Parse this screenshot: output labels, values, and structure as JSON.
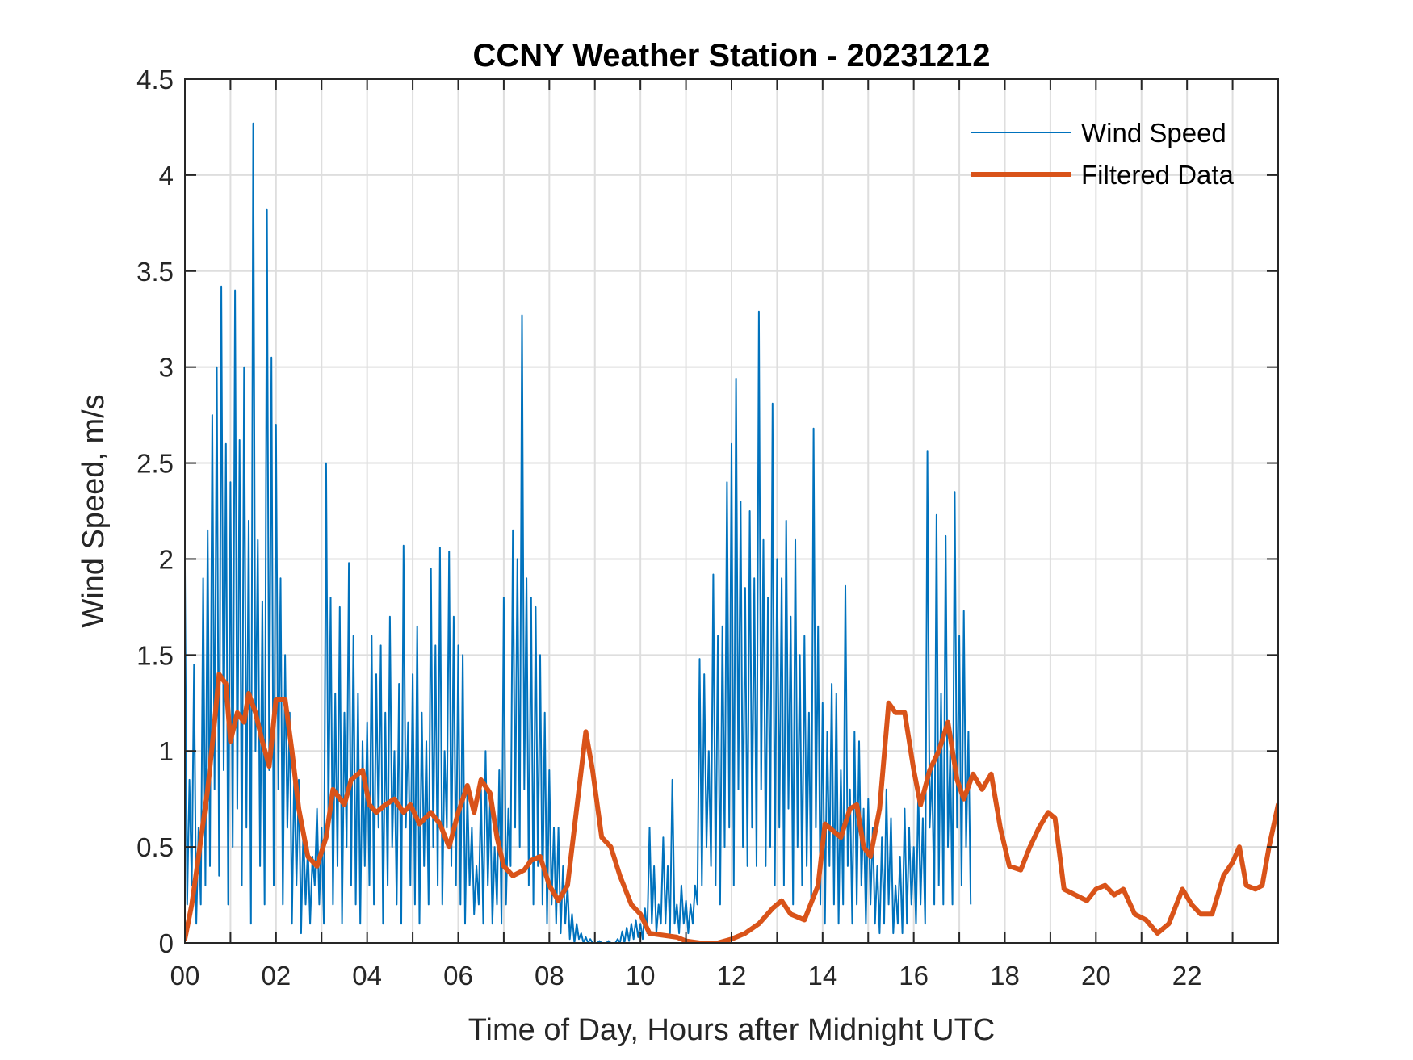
{
  "chart_data": {
    "type": "line",
    "title": "CCNY Weather Station - 20231212",
    "xlabel": "Time of Day, Hours after Midnight UTC",
    "ylabel": "Wind Speed, m/s",
    "xlim": [
      0,
      24
    ],
    "ylim": [
      0,
      4.5
    ],
    "grid": true,
    "legend_position": "top-right",
    "x_ticks": [
      0,
      2,
      4,
      6,
      8,
      10,
      12,
      14,
      16,
      18,
      20,
      22
    ],
    "x_tick_labels": [
      "00",
      "02",
      "04",
      "06",
      "08",
      "10",
      "12",
      "14",
      "16",
      "18",
      "20",
      "22"
    ],
    "x_minor_ticks_every_hours": 1,
    "y_ticks": [
      0,
      0.5,
      1,
      1.5,
      2,
      2.5,
      3,
      3.5,
      4,
      4.5
    ],
    "y_tick_labels": [
      "0",
      "0.5",
      "1",
      "1.5",
      "2",
      "2.5",
      "3",
      "3.5",
      "4",
      "4.5"
    ],
    "series": [
      {
        "name": "Wind Speed",
        "color": "#0072BD",
        "style": "thin",
        "x_step_hours": 0.05,
        "x_start": 0,
        "values": [
          1.95,
          0.2,
          0.85,
          0.3,
          1.45,
          0.1,
          0.6,
          0.2,
          1.9,
          0.3,
          2.15,
          0.4,
          2.75,
          0.8,
          3.0,
          0.35,
          3.42,
          0.9,
          2.6,
          0.2,
          2.4,
          0.5,
          3.4,
          0.7,
          2.62,
          0.3,
          3.0,
          0.6,
          2.2,
          0.1,
          4.27,
          1.0,
          2.1,
          0.4,
          1.78,
          0.2,
          3.82,
          0.9,
          3.05,
          0.3,
          2.7,
          0.8,
          1.9,
          0.2,
          1.5,
          0.6,
          1.2,
          0.1,
          0.9,
          0.3,
          0.85,
          0.05,
          0.6,
          0.2,
          0.5,
          0.1,
          0.45,
          0.3,
          0.7,
          0.2,
          0.6,
          0.1,
          2.5,
          0.6,
          1.8,
          0.2,
          1.3,
          0.4,
          1.75,
          0.1,
          1.2,
          0.5,
          1.98,
          0.3,
          1.6,
          0.2,
          1.3,
          0.1,
          1.05,
          0.4,
          1.15,
          0.3,
          1.6,
          0.2,
          1.4,
          0.6,
          1.55,
          0.1,
          1.2,
          0.3,
          1.7,
          0.5,
          1.0,
          0.2,
          1.35,
          0.1,
          2.07,
          0.6,
          1.15,
          0.3,
          1.4,
          0.2,
          1.65,
          0.1,
          1.2,
          0.4,
          1.05,
          0.2,
          1.95,
          0.5,
          1.55,
          0.3,
          2.06,
          0.2,
          1.0,
          0.6,
          2.04,
          0.4,
          1.7,
          0.3,
          1.55,
          0.2,
          1.5,
          0.1,
          0.8,
          0.3,
          0.6,
          0.15,
          0.4,
          0.2,
          0.8,
          0.1,
          1.0,
          0.3,
          0.75,
          0.1,
          0.5,
          0.2,
          0.9,
          0.1,
          1.8,
          0.2,
          0.7,
          0.4,
          2.15,
          0.6,
          2.0,
          0.5,
          3.27,
          0.8,
          1.9,
          0.3,
          1.8,
          0.2,
          1.75,
          0.4,
          1.5,
          0.2,
          1.2,
          0.1,
          0.9,
          0.2,
          0.6,
          0.1,
          0.6,
          0.05,
          0.4,
          0.1,
          0.3,
          0.02,
          0.15,
          0.0,
          0.1,
          0.02,
          0.05,
          0.0,
          0.03,
          0.0,
          0.02,
          0.0,
          0.0,
          0.0,
          0.01,
          0.0,
          0.0,
          0.0,
          0.01,
          0.0,
          0.0,
          0.0,
          0.02,
          0.0,
          0.06,
          0.0,
          0.08,
          0.01,
          0.1,
          0.02,
          0.12,
          0.03,
          0.1,
          0.02,
          0.18,
          0.05,
          0.6,
          0.1,
          0.4,
          0.05,
          0.2,
          0.1,
          0.55,
          0.1,
          0.4,
          0.05,
          0.85,
          0.1,
          0.2,
          0.05,
          0.3,
          0.1,
          0.22,
          0.05,
          0.2,
          0.1,
          0.3,
          0.2,
          1.48,
          0.3,
          1.4,
          0.5,
          1.0,
          0.4,
          1.92,
          0.3,
          1.6,
          0.2,
          1.65,
          0.5,
          2.4,
          0.6,
          2.6,
          0.3,
          2.94,
          0.8,
          2.3,
          0.5,
          1.85,
          0.4,
          2.25,
          0.6,
          1.9,
          0.4,
          3.29,
          0.8,
          2.1,
          0.4,
          1.8,
          0.5,
          2.81,
          0.3,
          2.0,
          0.6,
          1.9,
          0.3,
          2.2,
          0.7,
          1.7,
          0.2,
          2.1,
          0.5,
          1.5,
          0.3,
          1.6,
          0.4,
          1.2,
          0.2,
          2.68,
          0.6,
          1.65,
          0.2,
          1.25,
          0.1,
          1.1,
          0.4,
          1.35,
          0.2,
          1.3,
          0.1,
          0.9,
          0.2,
          1.86,
          0.4,
          0.8,
          0.1,
          1.1,
          0.2,
          1.05,
          0.3,
          0.7,
          0.1,
          0.75,
          0.2,
          0.6,
          0.1,
          0.4,
          0.05,
          0.55,
          0.1,
          0.8,
          0.2,
          0.65,
          0.05,
          0.3,
          0.1,
          0.45,
          0.05,
          0.7,
          0.1,
          0.6,
          0.2,
          0.5,
          0.1,
          0.8,
          0.2,
          0.65,
          0.1,
          2.56,
          0.6,
          0.9,
          0.2,
          2.23,
          0.3,
          1.3,
          0.2,
          2.12,
          0.5,
          1.0,
          0.2,
          2.35,
          0.6,
          1.6,
          0.3,
          1.73,
          0.5,
          1.1,
          0.2
        ]
      },
      {
        "name": "Filtered Data",
        "color": "#D95319",
        "style": "thick",
        "points": [
          [
            0,
            0.02
          ],
          [
            0.15,
            0.2
          ],
          [
            0.3,
            0.45
          ],
          [
            0.5,
            0.8
          ],
          [
            0.65,
            1.15
          ],
          [
            0.75,
            1.4
          ],
          [
            0.9,
            1.35
          ],
          [
            1.0,
            1.05
          ],
          [
            1.15,
            1.2
          ],
          [
            1.3,
            1.15
          ],
          [
            1.4,
            1.3
          ],
          [
            1.55,
            1.2
          ],
          [
            1.7,
            1.05
          ],
          [
            1.85,
            0.92
          ],
          [
            2.0,
            1.27
          ],
          [
            2.2,
            1.27
          ],
          [
            2.35,
            1.0
          ],
          [
            2.5,
            0.7
          ],
          [
            2.7,
            0.45
          ],
          [
            2.9,
            0.4
          ],
          [
            3.1,
            0.55
          ],
          [
            3.25,
            0.8
          ],
          [
            3.5,
            0.72
          ],
          [
            3.65,
            0.85
          ],
          [
            3.9,
            0.9
          ],
          [
            4.05,
            0.72
          ],
          [
            4.2,
            0.68
          ],
          [
            4.4,
            0.72
          ],
          [
            4.6,
            0.75
          ],
          [
            4.8,
            0.68
          ],
          [
            4.95,
            0.72
          ],
          [
            5.15,
            0.62
          ],
          [
            5.4,
            0.68
          ],
          [
            5.6,
            0.62
          ],
          [
            5.8,
            0.5
          ],
          [
            6.0,
            0.68
          ],
          [
            6.2,
            0.82
          ],
          [
            6.35,
            0.68
          ],
          [
            6.5,
            0.85
          ],
          [
            6.7,
            0.78
          ],
          [
            6.85,
            0.55
          ],
          [
            7.0,
            0.4
          ],
          [
            7.2,
            0.35
          ],
          [
            7.45,
            0.38
          ],
          [
            7.6,
            0.43
          ],
          [
            7.8,
            0.45
          ],
          [
            8.0,
            0.3
          ],
          [
            8.2,
            0.22
          ],
          [
            8.4,
            0.3
          ],
          [
            8.6,
            0.7
          ],
          [
            8.8,
            1.1
          ],
          [
            8.95,
            0.9
          ],
          [
            9.15,
            0.55
          ],
          [
            9.35,
            0.5
          ],
          [
            9.55,
            0.35
          ],
          [
            9.8,
            0.2
          ],
          [
            10.0,
            0.15
          ],
          [
            10.2,
            0.05
          ],
          [
            10.5,
            0.04
          ],
          [
            10.8,
            0.03
          ],
          [
            11.0,
            0.01
          ],
          [
            11.3,
            0.0
          ],
          [
            11.7,
            0.0
          ],
          [
            12.0,
            0.02
          ],
          [
            12.3,
            0.05
          ],
          [
            12.6,
            0.1
          ],
          [
            12.9,
            0.18
          ],
          [
            13.1,
            0.22
          ],
          [
            13.3,
            0.15
          ],
          [
            13.6,
            0.12
          ],
          [
            13.9,
            0.3
          ],
          [
            14.05,
            0.62
          ],
          [
            14.25,
            0.58
          ],
          [
            14.4,
            0.55
          ],
          [
            14.6,
            0.7
          ],
          [
            14.75,
            0.72
          ],
          [
            14.9,
            0.5
          ],
          [
            15.05,
            0.45
          ],
          [
            15.25,
            0.7
          ],
          [
            15.45,
            1.25
          ],
          [
            15.6,
            1.2
          ],
          [
            15.8,
            1.2
          ],
          [
            16.0,
            0.9
          ],
          [
            16.15,
            0.72
          ],
          [
            16.35,
            0.9
          ],
          [
            16.55,
            1.0
          ],
          [
            16.75,
            1.15
          ],
          [
            16.95,
            0.85
          ],
          [
            17.1,
            0.75
          ],
          [
            17.3,
            0.88
          ],
          [
            17.5,
            0.8
          ],
          [
            17.7,
            0.88
          ],
          [
            17.9,
            0.6
          ],
          [
            18.1,
            0.4
          ],
          [
            18.35,
            0.38
          ],
          [
            18.55,
            0.5
          ],
          [
            18.75,
            0.6
          ],
          [
            18.95,
            0.68
          ],
          [
            19.1,
            0.65
          ],
          [
            19.3,
            0.28
          ],
          [
            19.55,
            0.25
          ],
          [
            19.8,
            0.22
          ],
          [
            20.0,
            0.28
          ],
          [
            20.2,
            0.3
          ],
          [
            20.4,
            0.25
          ],
          [
            20.6,
            0.28
          ],
          [
            20.85,
            0.15
          ],
          [
            21.1,
            0.12
          ],
          [
            21.35,
            0.05
          ],
          [
            21.6,
            0.1
          ],
          [
            21.9,
            0.28
          ],
          [
            22.1,
            0.2
          ],
          [
            22.3,
            0.15
          ],
          [
            22.55,
            0.15
          ],
          [
            22.8,
            0.35
          ],
          [
            23.0,
            0.42
          ],
          [
            23.15,
            0.5
          ],
          [
            23.3,
            0.3
          ],
          [
            23.5,
            0.28
          ],
          [
            23.65,
            0.3
          ],
          [
            23.8,
            0.5
          ],
          [
            24.0,
            0.72
          ]
        ]
      }
    ]
  }
}
